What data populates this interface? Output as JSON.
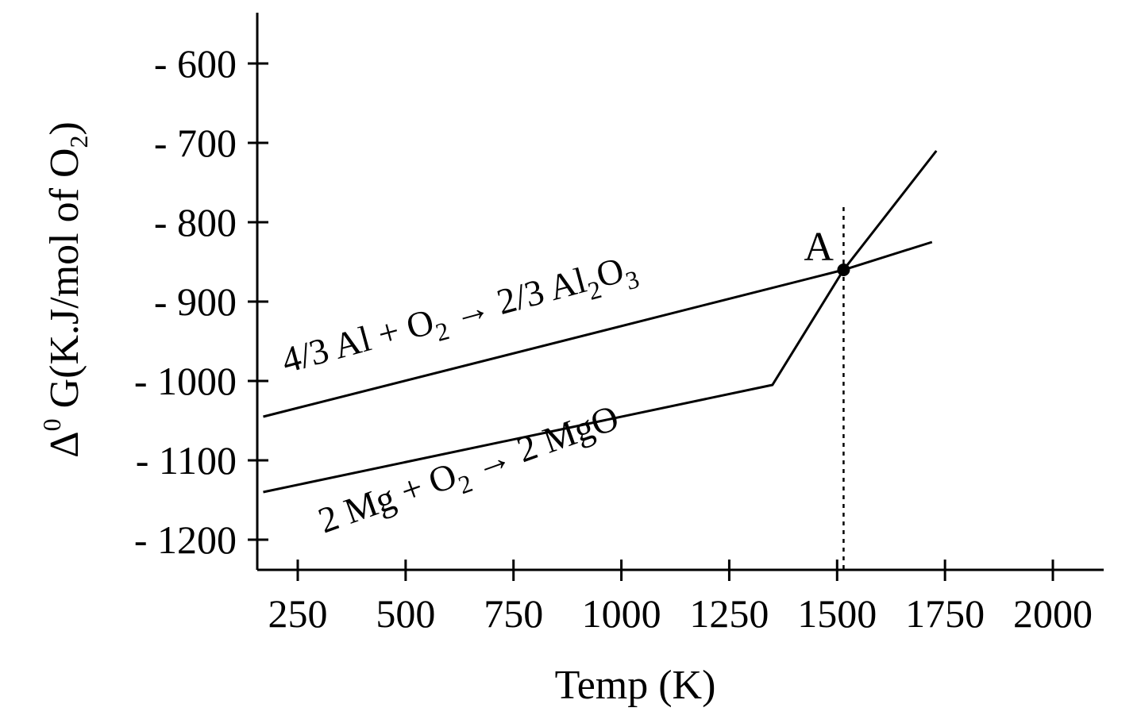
{
  "chart_data": {
    "type": "line",
    "xlabel": "Temp (K)",
    "ylabel": {
      "delta": "Δ",
      "degree": "0",
      "main": " G(K.J/mol of O",
      "sub": "2",
      "close": ")"
    },
    "xlim": [
      160,
      2110
    ],
    "ylim": [
      -1235,
      -545
    ],
    "x_ticks": [
      {
        "value": 250,
        "label": "250"
      },
      {
        "value": 500,
        "label": "500"
      },
      {
        "value": 750,
        "label": "750"
      },
      {
        "value": 1000,
        "label": "1000"
      },
      {
        "value": 1250,
        "label": "1250"
      },
      {
        "value": 1500,
        "label": "1500"
      },
      {
        "value": 1750,
        "label": "1750"
      },
      {
        "value": 2000,
        "label": "2000"
      }
    ],
    "y_ticks": [
      {
        "value": -600,
        "label": "- 600"
      },
      {
        "value": -700,
        "label": "- 700"
      },
      {
        "value": -800,
        "label": "- 800"
      },
      {
        "value": -900,
        "label": "- 900"
      },
      {
        "value": -1000,
        "label": "- 1000"
      },
      {
        "value": -1100,
        "label": "- 1100"
      },
      {
        "value": -1200,
        "label": "- 1200"
      }
    ],
    "series": [
      {
        "label_parts": [
          "4/3 Al + O",
          "2",
          " → 2/3 Al",
          "2",
          "O",
          "3"
        ],
        "points": [
          [
            170,
            -1045
          ],
          [
            1515,
            -860
          ],
          [
            1720,
            -825
          ]
        ]
      },
      {
        "label_parts": [
          "2 Mg + O",
          "2",
          " → 2 MgO"
        ],
        "points": [
          [
            170,
            -1140
          ],
          [
            1350,
            -1005
          ],
          [
            1515,
            -860
          ],
          [
            1730,
            -710
          ]
        ]
      }
    ],
    "point": {
      "label": "A",
      "x": 1515,
      "y": -860
    },
    "vline": {
      "x": 1515,
      "y_top": -781
    }
  }
}
